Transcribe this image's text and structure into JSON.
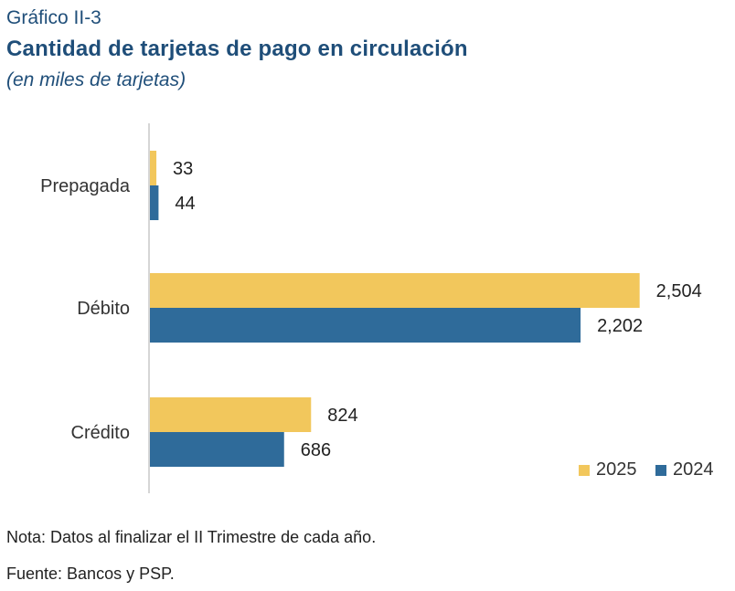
{
  "header": {
    "label": "Gráfico II-3",
    "title": "Cantidad de tarjetas de pago en circulación",
    "subtitle": "(en miles de tarjetas)"
  },
  "footer": {
    "note": "Nota: Datos al finalizar el II Trimestre de cada año.",
    "source": "Fuente: Bancos y PSP."
  },
  "chart_data": {
    "type": "bar",
    "orientation": "horizontal",
    "categories": [
      "Prepagada",
      "Débito",
      "Crédito"
    ],
    "series": [
      {
        "name": "2025",
        "values": [
          33,
          2504,
          824
        ],
        "labels": [
          "33",
          "2,504",
          "824"
        ],
        "color": "#f2c75c"
      },
      {
        "name": "2024",
        "values": [
          44,
          2202,
          686
        ],
        "labels": [
          "44",
          "2,202",
          "686"
        ],
        "color": "#2f6b9a"
      }
    ],
    "xlim": [
      0,
      2800
    ],
    "grid": false,
    "legend": "bottom-right"
  }
}
